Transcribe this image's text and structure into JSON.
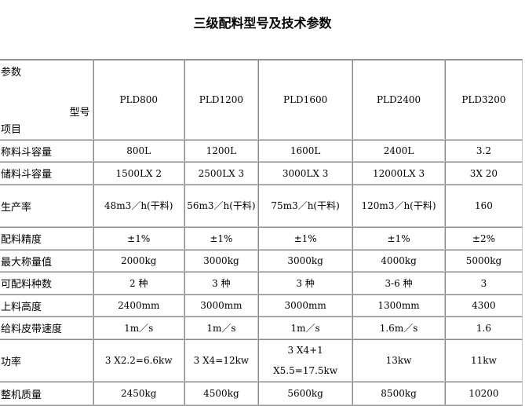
{
  "title": "三级配料型号及技术参数",
  "header": {
    "param": "参数",
    "model": "型号",
    "item": "项目",
    "models": [
      "PLD800",
      "PLD1200",
      "PLD1600",
      "PLD2400",
      "PLD3200"
    ]
  },
  "rows": [
    {
      "label": "称料斗容量",
      "values": [
        "800L",
        "1200L",
        "1600L",
        "2400L",
        "3.2"
      ]
    },
    {
      "label": "储料斗容量",
      "values": [
        "1500LX 2",
        "2500LX 3",
        "3000LX 3",
        "12000LX 3",
        "3X 20"
      ]
    },
    {
      "label": "生产率",
      "values": [
        "48m3／h(干料)",
        "56m3／h(干料)",
        "75m3／h(干料)",
        "120m3／h(干料)",
        "160"
      ]
    },
    {
      "label": "配料精度",
      "values": [
        "±1%",
        "±1%",
        "±1%",
        "±1%",
        "±2%"
      ]
    },
    {
      "label": "最大称量值",
      "values": [
        "2000kg",
        "3000kg",
        "3000kg",
        "4000kg",
        "5000kg"
      ]
    },
    {
      "label": "可配料种数",
      "values": [
        "2 种",
        "3 种",
        "3 种",
        "3-6 种",
        "3"
      ]
    },
    {
      "label": "上料高度",
      "values": [
        "2400mm",
        "3000mm",
        "3000mm",
        "1300mm",
        "4300"
      ]
    },
    {
      "label": "给料皮带速度",
      "values": [
        "1m／s",
        "1m／s",
        "1m／s",
        "1.6m／s",
        "1.6"
      ]
    },
    {
      "label": "功率",
      "values": [
        "3 X2.2=6.6kw",
        "3 X4=12kw",
        "3 X4+1 X5.5=17.5kw",
        "13kw",
        "11kw"
      ]
    },
    {
      "label": "整机质量",
      "values": [
        "2450kg",
        "4500kg",
        "5600kg",
        "8500kg",
        "10200"
      ]
    }
  ]
}
